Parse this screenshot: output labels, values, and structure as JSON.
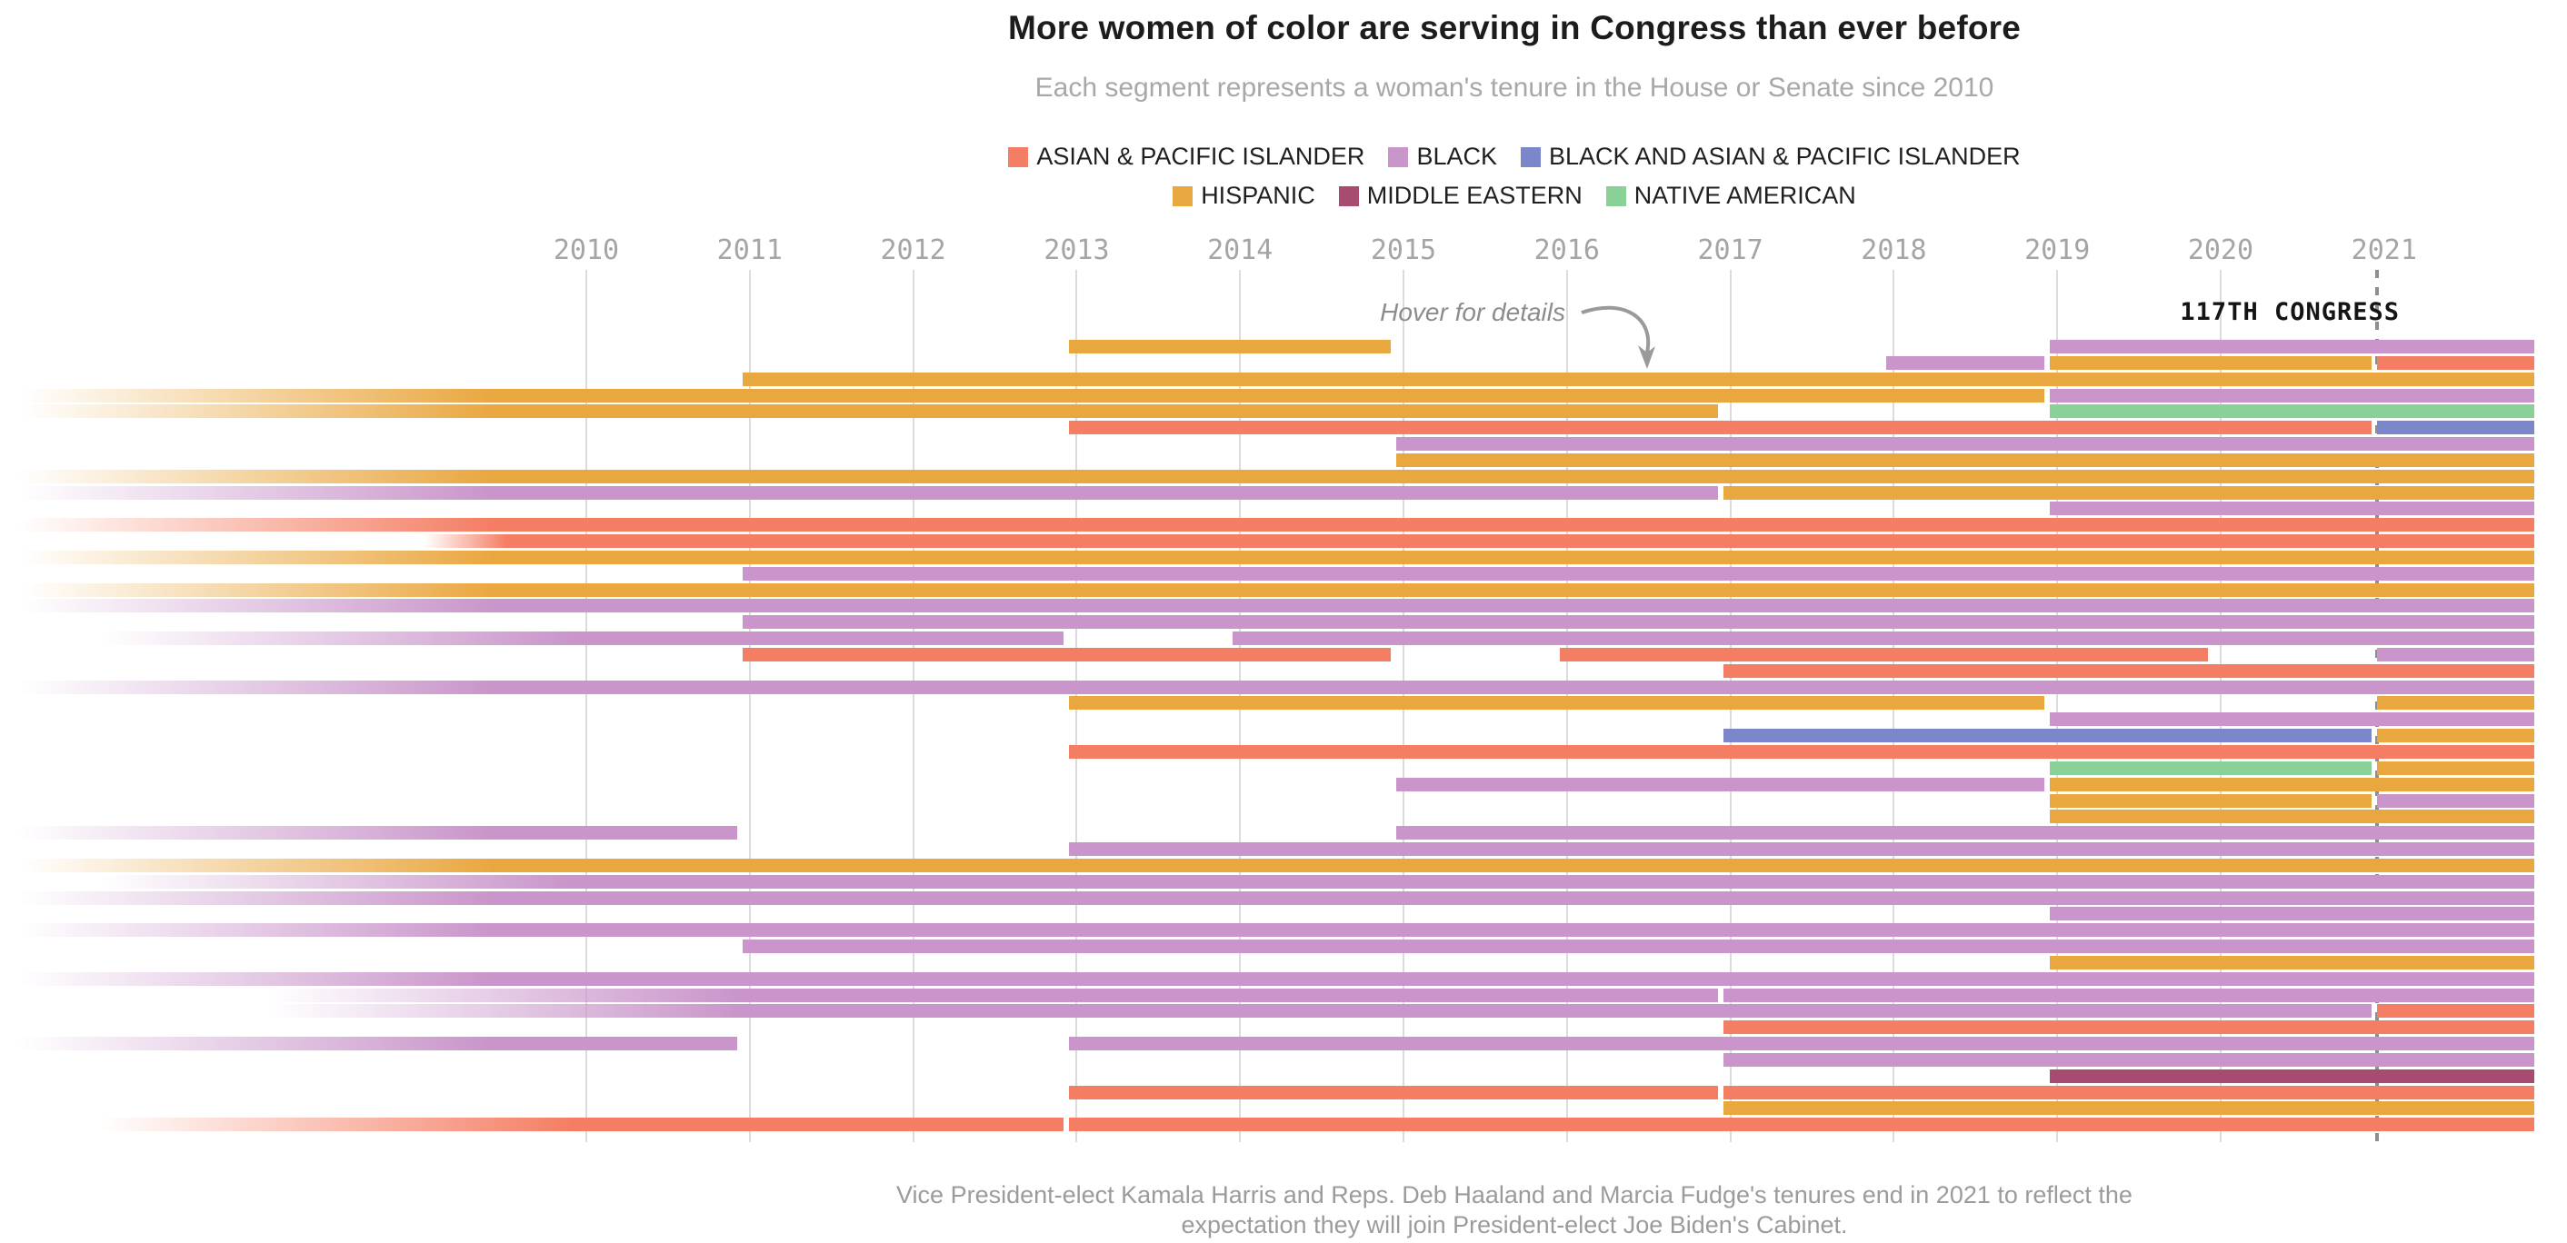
{
  "header": {
    "title": "More women of color are serving in Congress than ever before",
    "subtitle": "Each segment represents a woman's tenure in the House or Senate since 2010"
  },
  "legend": {
    "row1": [
      {
        "label": "ASIAN & PACIFIC ISLANDER",
        "color": "api"
      },
      {
        "label": "BLACK",
        "color": "black"
      },
      {
        "label": "BLACK AND ASIAN & PACIFIC ISLANDER",
        "color": "black_api"
      }
    ],
    "row2": [
      {
        "label": "HISPANIC",
        "color": "hispanic"
      },
      {
        "label": "MIDDLE EASTERN",
        "color": "middle_eastern"
      },
      {
        "label": "NATIVE AMERICAN",
        "color": "native"
      }
    ]
  },
  "annotations": {
    "hover": "Hover for details",
    "congress": "117TH CONGRESS"
  },
  "footer": {
    "line1": "Vice President-elect Kamala Harris and Reps. Deb Haaland and Marcia Fudge's tenures end in 2021 to reflect the",
    "line2": "expectation they will join President-elect Joe Biden's Cabinet."
  },
  "chart_data": {
    "type": "gantt-timeline",
    "title": "More women of color are serving in Congress than ever before",
    "x_ticks": [
      2010,
      2011,
      2012,
      2013,
      2014,
      2015,
      2016,
      2017,
      2018,
      2019,
      2020,
      2021
    ],
    "x_domain": [
      2010,
      2021.9
    ],
    "dashed_year": 2021,
    "grid": true,
    "legend_position": "top-center",
    "colors": {
      "api": "#F47E64",
      "black": "#C995CA",
      "black_api": "#7B86CB",
      "hispanic": "#E9A740",
      "middle_eastern": "#A84B70",
      "native": "#89D197"
    },
    "note": "segments with fx start as a left fade (tenure began before 2010); e='present' runs to chart end",
    "rows": [
      [
        {
          "c": "hispanic",
          "s": 2013,
          "e": 2015
        },
        {
          "c": "black",
          "s": 2019,
          "e": "present"
        }
      ],
      [
        {
          "c": "black",
          "s": 2018,
          "e": 2019
        },
        {
          "c": "hispanic",
          "s": 2019,
          "e": 2021
        },
        {
          "c": "api",
          "s": 2021,
          "e": "present"
        }
      ],
      [
        {
          "c": "hispanic",
          "s": 2011,
          "e": "present"
        }
      ],
      [
        {
          "c": "hispanic",
          "fx": 24,
          "e": 2019
        },
        {
          "c": "black",
          "s": 2019,
          "e": "present"
        }
      ],
      [
        {
          "c": "hispanic",
          "fx": 24,
          "e": 2017
        },
        {
          "c": "native",
          "s": 2019,
          "e": "present"
        }
      ],
      [
        {
          "c": "api",
          "s": 2013,
          "e": 2021
        },
        {
          "c": "black_api",
          "s": 2021,
          "e": "present"
        }
      ],
      [
        {
          "c": "black",
          "s": 2015,
          "e": "present"
        }
      ],
      [
        {
          "c": "hispanic",
          "s": 2015,
          "e": "present"
        }
      ],
      [
        {
          "c": "hispanic",
          "fx": 20,
          "e": "present"
        }
      ],
      [
        {
          "c": "black",
          "fx": 21,
          "e": 2017
        },
        {
          "c": "hispanic",
          "s": 2017,
          "e": "present"
        }
      ],
      [
        {
          "c": "black",
          "s": 2019,
          "e": "present"
        }
      ],
      [
        {
          "c": "api",
          "fx": 20,
          "e": "present"
        }
      ],
      [
        {
          "c": "api",
          "fx": 467,
          "fl": 90,
          "e": "present"
        }
      ],
      [
        {
          "c": "hispanic",
          "fx": 22,
          "e": "present"
        }
      ],
      [
        {
          "c": "black",
          "s": 2011,
          "e": "present"
        }
      ],
      [
        {
          "c": "hispanic",
          "fx": 25,
          "e": "present"
        }
      ],
      [
        {
          "c": "black",
          "fx": 25,
          "e": "present"
        }
      ],
      [
        {
          "c": "black",
          "s": 2011,
          "e": "present"
        }
      ],
      [
        {
          "c": "black",
          "fx": 112,
          "e": 2013
        },
        {
          "c": "black",
          "s": 2014,
          "e": "present"
        }
      ],
      [
        {
          "c": "api",
          "s": 2011,
          "e": 2015
        },
        {
          "c": "api",
          "s": 2016,
          "e": 2020
        },
        {
          "c": "black",
          "s": 2021,
          "e": "present"
        }
      ],
      [
        {
          "c": "api",
          "s": 2017,
          "e": "present"
        }
      ],
      [
        {
          "c": "black",
          "fx": 22,
          "e": "present"
        }
      ],
      [
        {
          "c": "hispanic",
          "s": 2013,
          "e": 2019
        },
        {
          "c": "hispanic",
          "s": 2021,
          "e": "present"
        }
      ],
      [
        {
          "c": "black",
          "s": 2019,
          "e": "present"
        }
      ],
      [
        {
          "c": "black_api",
          "s": 2017,
          "e": 2021
        },
        {
          "c": "hispanic",
          "s": 2021,
          "e": "present"
        }
      ],
      [
        {
          "c": "api",
          "s": 2013,
          "e": "present"
        }
      ],
      [
        {
          "c": "native",
          "s": 2019,
          "e": 2021
        },
        {
          "c": "hispanic",
          "s": 2021,
          "e": "present"
        }
      ],
      [
        {
          "c": "black",
          "s": 2015,
          "e": 2019
        },
        {
          "c": "hispanic",
          "s": 2019,
          "e": "present"
        }
      ],
      [
        {
          "c": "hispanic",
          "s": 2019,
          "e": 2021
        },
        {
          "c": "black",
          "s": 2021,
          "e": "present"
        }
      ],
      [
        {
          "c": "hispanic",
          "s": 2019,
          "e": "present"
        }
      ],
      [
        {
          "c": "black",
          "fx": 20,
          "e": 2011
        },
        {
          "c": "black",
          "s": 2015,
          "e": "present"
        }
      ],
      [
        {
          "c": "black",
          "s": 2013,
          "e": "present"
        }
      ],
      [
        {
          "c": "hispanic",
          "fx": 22,
          "e": "present"
        }
      ],
      [
        {
          "c": "black",
          "fx": 110,
          "e": "present"
        }
      ],
      [
        {
          "c": "black",
          "fx": 22,
          "e": "present"
        }
      ],
      [
        {
          "c": "black",
          "s": 2019,
          "e": "present"
        }
      ],
      [
        {
          "c": "black",
          "fx": 22,
          "e": "present"
        }
      ],
      [
        {
          "c": "black",
          "s": 2011,
          "e": "present"
        }
      ],
      [
        {
          "c": "hispanic",
          "s": 2019,
          "e": "present"
        }
      ],
      [
        {
          "c": "black",
          "fx": 22,
          "e": "present"
        }
      ],
      [
        {
          "c": "black",
          "fx": 294,
          "e": 2017
        },
        {
          "c": "black",
          "s": 2017,
          "e": "present"
        }
      ],
      [
        {
          "c": "black",
          "fx": 294,
          "e": 2021
        },
        {
          "c": "api",
          "s": 2021,
          "e": "present"
        }
      ],
      [
        {
          "c": "api",
          "s": 2017,
          "e": "present"
        }
      ],
      [
        {
          "c": "black",
          "fx": 20,
          "e": 2011
        },
        {
          "c": "black",
          "s": 2013,
          "e": "present"
        }
      ],
      [
        {
          "c": "black",
          "s": 2017,
          "e": "present"
        }
      ],
      [
        {
          "c": "middle_eastern",
          "s": 2019,
          "e": "present"
        }
      ],
      [
        {
          "c": "api",
          "s": 2013,
          "e": 2017
        },
        {
          "c": "api",
          "s": 2017,
          "e": "present"
        }
      ],
      [
        {
          "c": "hispanic",
          "s": 2017,
          "e": "present"
        }
      ],
      [
        {
          "c": "api",
          "fx": 110,
          "e": 2013
        },
        {
          "c": "api",
          "s": 2013,
          "e": "present"
        }
      ]
    ]
  }
}
